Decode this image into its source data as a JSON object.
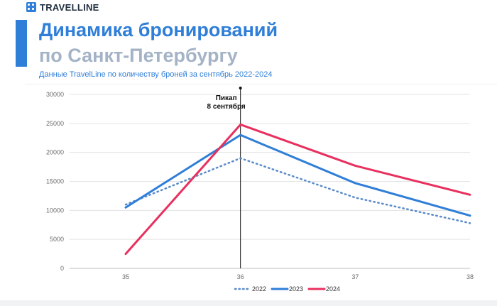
{
  "brand": {
    "name": "TRAVELLINE",
    "color": "#2f7ed8",
    "icon": "grid-logo-icon"
  },
  "header": {
    "title_line1": "Динамика бронирований",
    "title_line2": "по Санкт-Петербургу",
    "subtitle": "Данные TravelLine по количеству броней за сентябрь 2022-2024"
  },
  "chart_data": {
    "type": "line",
    "x": [
      35,
      36,
      37,
      38
    ],
    "ylim": [
      0,
      30000
    ],
    "yticks": [
      0,
      5000,
      10000,
      15000,
      20000,
      25000,
      30000
    ],
    "grid": true,
    "legend_position": "bottom-center",
    "series": [
      {
        "name": "2022",
        "values": [
          11000,
          19000,
          12200,
          7800
        ],
        "color": "#5b8bc9",
        "style": "dotted"
      },
      {
        "name": "2023",
        "values": [
          10500,
          23000,
          14700,
          9100
        ],
        "color": "#2f7ed8",
        "style": "solid"
      },
      {
        "name": "2024",
        "values": [
          2500,
          24800,
          17700,
          12700
        ],
        "color": "#e8305f",
        "style": "solid"
      }
    ],
    "annotation": {
      "x": 36,
      "line1": "Пикап",
      "line2": "8 сентября"
    }
  }
}
